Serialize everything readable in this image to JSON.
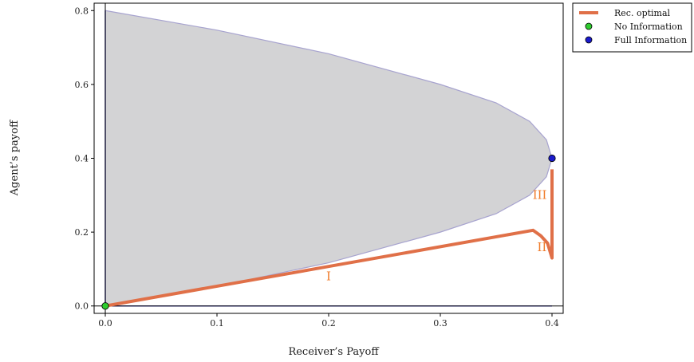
{
  "chart_data": {
    "type": "line",
    "xlabel": "Receiver’s Payoff",
    "ylabel": "Agent’s payoff",
    "xlim": [
      -0.01,
      0.41
    ],
    "ylim": [
      -0.02,
      0.82
    ],
    "x_ticks": [
      0.0,
      0.1,
      0.2,
      0.3,
      0.4
    ],
    "x_tick_labels": [
      "0.0",
      "0.1",
      "0.2",
      "0.3",
      "0.4"
    ],
    "y_ticks": [
      0.0,
      0.2,
      0.4,
      0.6,
      0.8
    ],
    "y_tick_labels": [
      "0.0",
      "0.2",
      "0.4",
      "0.6",
      "0.8"
    ],
    "grid": false,
    "legend_position": "outside-top-right",
    "feasible_region": {
      "fill_color": "#d3d3d5",
      "edge_color": "#a7a3cf",
      "upper_boundary": [
        {
          "x": 0.0,
          "y": 0.8
        },
        {
          "x": 0.1,
          "y": 0.747
        },
        {
          "x": 0.2,
          "y": 0.683
        },
        {
          "x": 0.3,
          "y": 0.6
        },
        {
          "x": 0.35,
          "y": 0.55
        },
        {
          "x": 0.38,
          "y": 0.5
        },
        {
          "x": 0.395,
          "y": 0.45
        },
        {
          "x": 0.4,
          "y": 0.4
        }
      ],
      "lower_boundary": [
        {
          "x": 0.4,
          "y": 0.4
        },
        {
          "x": 0.395,
          "y": 0.35
        },
        {
          "x": 0.38,
          "y": 0.3
        },
        {
          "x": 0.35,
          "y": 0.25
        },
        {
          "x": 0.3,
          "y": 0.2
        },
        {
          "x": 0.2,
          "y": 0.117
        },
        {
          "x": 0.1,
          "y": 0.053
        },
        {
          "x": 0.0,
          "y": 0.0
        }
      ]
    },
    "reference_lines": [
      {
        "name": "y-axis-line",
        "points": [
          {
            "x": 0.0,
            "y": 0.0
          },
          {
            "x": 0.0,
            "y": 0.8
          }
        ],
        "color": "#1f1fa8"
      },
      {
        "name": "x-axis-line",
        "points": [
          {
            "x": 0.0,
            "y": 0.0
          },
          {
            "x": 0.4,
            "y": 0.0
          }
        ],
        "color": "#1f1fa8"
      }
    ],
    "series": [
      {
        "name": "Rec. optimal",
        "type": "line",
        "color": "#e07048",
        "points": [
          {
            "x": 0.0,
            "y": 0.0
          },
          {
            "x": 0.383,
            "y": 0.205
          },
          {
            "x": 0.39,
            "y": 0.19
          },
          {
            "x": 0.396,
            "y": 0.17
          },
          {
            "x": 0.4,
            "y": 0.13
          },
          {
            "x": 0.4,
            "y": 0.37
          }
        ]
      },
      {
        "name": "No Information",
        "type": "scatter",
        "color": "#2ecc2e",
        "points": [
          {
            "x": 0.0,
            "y": 0.0
          }
        ]
      },
      {
        "name": "Full Information",
        "type": "scatter",
        "color": "#1a1acc",
        "points": [
          {
            "x": 0.4,
            "y": 0.4
          }
        ]
      }
    ],
    "annotations": [
      {
        "text": "I",
        "x": 0.2,
        "y": 0.07,
        "color": "#f07b2a"
      },
      {
        "text": "II",
        "x": 0.391,
        "y": 0.148,
        "color": "#f07b2a"
      },
      {
        "text": "III",
        "x": 0.389,
        "y": 0.29,
        "color": "#f07b2a"
      }
    ]
  }
}
